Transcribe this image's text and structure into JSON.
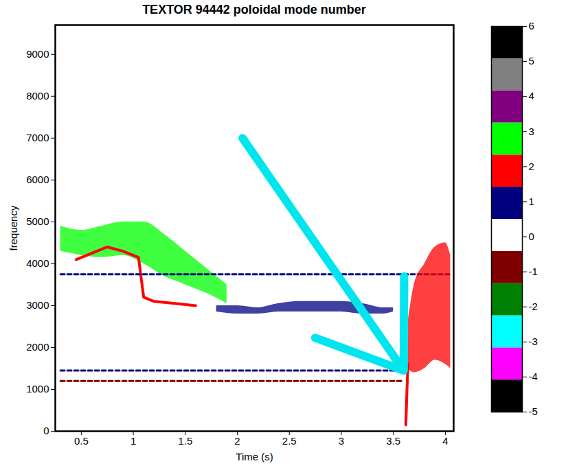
{
  "chart_data": {
    "type": "heatmap",
    "title": "TEXTOR 94442 poloidal mode number",
    "x_label": "Time (s)",
    "y_label": "frequency",
    "xlim": [
      0.25,
      4.08
    ],
    "ylim": [
      0,
      9700
    ],
    "xticks": [
      0.5,
      1,
      1.5,
      2,
      2.5,
      3,
      3.5,
      4
    ],
    "yticks": [
      0,
      1000,
      2000,
      3000,
      4000,
      5000,
      6000,
      7000,
      8000,
      9000
    ],
    "grid": false,
    "colorbar": {
      "lim": [
        -5,
        6
      ],
      "ticks": [
        -5,
        -4,
        -3,
        -2,
        -1,
        0,
        1,
        2,
        3,
        4,
        5,
        6
      ],
      "modes": [
        -5,
        -4,
        -3,
        -2,
        -1,
        0,
        1,
        2,
        3,
        4,
        5,
        6
      ],
      "colors": [
        "#000000",
        "#ff00ff",
        "#00ffff",
        "#008000",
        "#800000",
        "#ffffff",
        "#000080",
        "#ff0000",
        "#00ff00",
        "#800080",
        "#808080",
        "#000000"
      ]
    },
    "features": [
      {
        "mode": 3,
        "type": "area",
        "t": [
          0.3,
          0.5,
          0.7,
          0.9,
          1.1,
          1.3,
          1.5,
          1.7,
          1.9
        ],
        "f_low": [
          4300,
          4200,
          4150,
          4200,
          4000,
          3700,
          3500,
          3300,
          3050
        ],
        "f_high": [
          4900,
          4800,
          4900,
          5000,
          5000,
          4700,
          4300,
          3900,
          3500
        ]
      },
      {
        "mode": 2,
        "type": "line",
        "line_style": "solid",
        "t": [
          0.45,
          0.6,
          0.75,
          0.9,
          1.0,
          1.05,
          1.1,
          1.2,
          1.4,
          1.6
        ],
        "f": [
          4100,
          4250,
          4400,
          4300,
          4200,
          4150,
          3200,
          3100,
          3050,
          3000
        ]
      },
      {
        "mode": 1,
        "type": "line",
        "line_style": "dashed",
        "t": [
          0.3,
          4.05
        ],
        "f": [
          3750,
          3750
        ]
      },
      {
        "mode": 1,
        "type": "line",
        "line_style": "dashed",
        "t": [
          0.3,
          3.6
        ],
        "f": [
          1450,
          1450
        ]
      },
      {
        "mode": -1,
        "type": "line",
        "line_style": "dashed",
        "t": [
          0.3,
          3.6
        ],
        "f": [
          1200,
          1200
        ]
      },
      {
        "mode": 1,
        "type": "area",
        "t": [
          1.8,
          2.0,
          2.2,
          2.4,
          2.6,
          2.8,
          3.0,
          3.2,
          3.4,
          3.5
        ],
        "f_low": [
          2850,
          2800,
          2800,
          2850,
          2850,
          2850,
          2850,
          2800,
          2800,
          2850
        ],
        "f_high": [
          3000,
          3000,
          2950,
          3050,
          3100,
          3100,
          3100,
          3050,
          2950,
          2950
        ]
      },
      {
        "mode": 2,
        "type": "line",
        "line_style": "solid",
        "t": [
          3.62,
          3.63,
          3.64
        ],
        "f": [
          150,
          900,
          1600
        ]
      },
      {
        "mode": 2,
        "type": "area",
        "t": [
          3.64,
          3.7,
          3.8,
          3.9,
          4.0,
          4.05
        ],
        "f_low": [
          1500,
          1400,
          1500,
          1700,
          1600,
          1500
        ],
        "f_high": [
          2600,
          3500,
          4000,
          4400,
          4500,
          4200
        ]
      }
    ],
    "arrow": {
      "from": [
        2.05,
        7000
      ],
      "to": [
        3.6,
        1450
      ],
      "color": "#00e5ee"
    }
  }
}
